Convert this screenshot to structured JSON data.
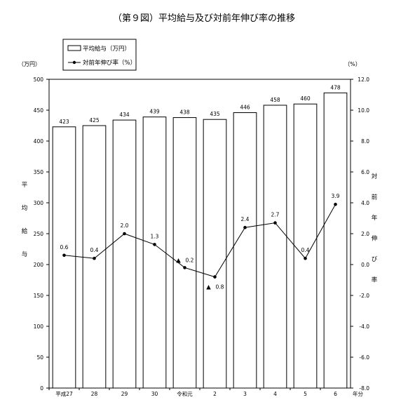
{
  "chart_data": {
    "type": "bar+line",
    "title": "（第９図）平均給与及び対前年伸び率の推移",
    "categories": [
      "平成27",
      "28",
      "29",
      "30",
      "令和元",
      "2",
      "3",
      "4",
      "5",
      "6"
    ],
    "x_unit": "年分",
    "series": [
      {
        "name": "平均給与（万円）",
        "type": "bar",
        "axis": "left",
        "values": [
          423,
          425,
          434,
          439,
          438,
          435,
          446,
          458,
          460,
          478
        ]
      },
      {
        "name": "対前年伸び率（%）",
        "type": "line",
        "axis": "right",
        "values": [
          0.6,
          0.4,
          2.0,
          1.3,
          -0.2,
          -0.8,
          2.4,
          2.7,
          0.4,
          3.9
        ],
        "labels": [
          "0.6",
          "0.4",
          "2.0",
          "1.3",
          "0.2",
          "0.8",
          "2.4",
          "2.7",
          "0.4",
          "3.9"
        ],
        "negative_marker": "▲"
      }
    ],
    "left_axis": {
      "unit": "（万円）",
      "label_chars": [
        "平",
        "均",
        "給",
        "与"
      ],
      "ylim": [
        0,
        500
      ],
      "ticks": [
        "0",
        "50",
        "100",
        "150",
        "200",
        "250",
        "300",
        "350",
        "400",
        "450",
        "500"
      ]
    },
    "right_axis": {
      "unit": "（%）",
      "label_chars": [
        "対",
        "前",
        "年",
        "伸",
        "び",
        "率"
      ],
      "ylim": [
        -8.0,
        12.0
      ],
      "ticks": [
        "-8.0",
        "-6.0",
        "-4.0",
        "-2.0",
        "0.0",
        "2.0",
        "4.0",
        "6.0",
        "8.0",
        "10.0",
        "12.0"
      ]
    },
    "legend": {
      "position": "top-left",
      "bar_label": "平均給与（万円）",
      "line_label": "対前年伸び率（%）"
    },
    "grid": false
  }
}
